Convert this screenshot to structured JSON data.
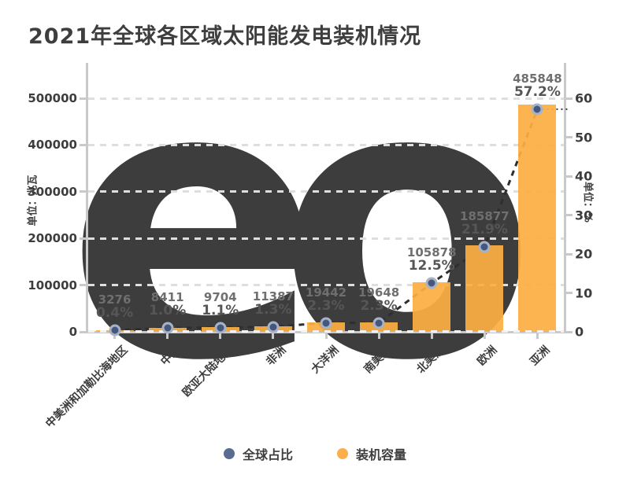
{
  "title": "2021年全球各区域太阳能发电装机情况",
  "watermark": "eo",
  "legend": [
    {
      "label": "全球占比",
      "color": "#5a6b93"
    },
    {
      "label": "装机容量",
      "color": "#fbae49"
    }
  ],
  "colors": {
    "bar": "#fbae42",
    "dot": "#44587e",
    "dot_ring": "#a8b2c7",
    "line": "#2e2e2e",
    "axis": "#c9c9c9",
    "gridline": "#dedede",
    "text_dark": "#3e3e3e",
    "watermark": "#3d3d3d"
  },
  "chart_data": {
    "type": "bar",
    "title": "2021年全球各区域太阳能发电装机情况",
    "categories": [
      "中美洲和加勒比海地区",
      "中东",
      "欧亚大陆地区",
      "非洲",
      "大洋洲",
      "南美洲",
      "北美洲",
      "欧洲",
      "亚洲"
    ],
    "series": [
      {
        "name": "装机容量",
        "type": "bar",
        "axis": "left",
        "unit": "兆瓦",
        "color": "#fbae42",
        "values": [
          3276,
          8411,
          9704,
          11387,
          19442,
          19648,
          105878,
          185877,
          485848
        ]
      },
      {
        "name": "全球占比",
        "type": "line-scatter",
        "axis": "right",
        "unit": "%",
        "color": "#44587e",
        "values": [
          0.4,
          1.0,
          1.1,
          1.3,
          2.3,
          2.3,
          12.5,
          21.9,
          57.2
        ]
      }
    ],
    "left_axis": {
      "name": "单位：兆瓦",
      "ticks": [
        0,
        100000,
        200000,
        300000,
        400000,
        500000
      ],
      "ylim": [
        0,
        500000
      ]
    },
    "right_axis": {
      "name": "单位：%",
      "ticks": [
        0,
        10,
        20,
        30,
        40,
        50,
        60
      ],
      "ylim": [
        0,
        60
      ]
    },
    "grid": "dashed-horizontal",
    "legend_position": "bottom-center",
    "x_label_rotation": 45
  }
}
